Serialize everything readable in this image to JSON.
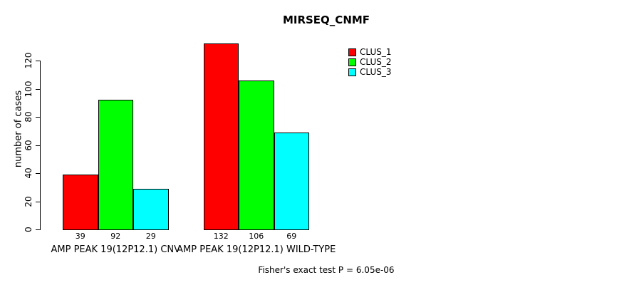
{
  "chart_data": {
    "type": "bar",
    "title": "MIRSEQ_CNMF",
    "xlabel": "",
    "ylabel": "number of cases",
    "ylim": [
      0,
      120
    ],
    "yticks": [
      0,
      20,
      40,
      60,
      80,
      100,
      120
    ],
    "grid": false,
    "legend_position": "top-right-inside",
    "categories": [
      "AMP PEAK 19(12P12.1) CNV",
      "AMP PEAK 19(12P12.1) WILD-TYPE"
    ],
    "series": [
      {
        "name": "CLUS_1",
        "color": "#FF0000",
        "values": [
          39,
          132
        ]
      },
      {
        "name": "CLUS_2",
        "color": "#00FF00",
        "values": [
          92,
          106
        ]
      },
      {
        "name": "CLUS_3",
        "color": "#00FFFF",
        "values": [
          29,
          69
        ]
      }
    ],
    "bar_value_labels": [
      [
        39,
        92,
        29
      ],
      [
        132,
        106,
        69
      ]
    ],
    "annotation": "Fisher's exact test P = 6.05e-06"
  }
}
